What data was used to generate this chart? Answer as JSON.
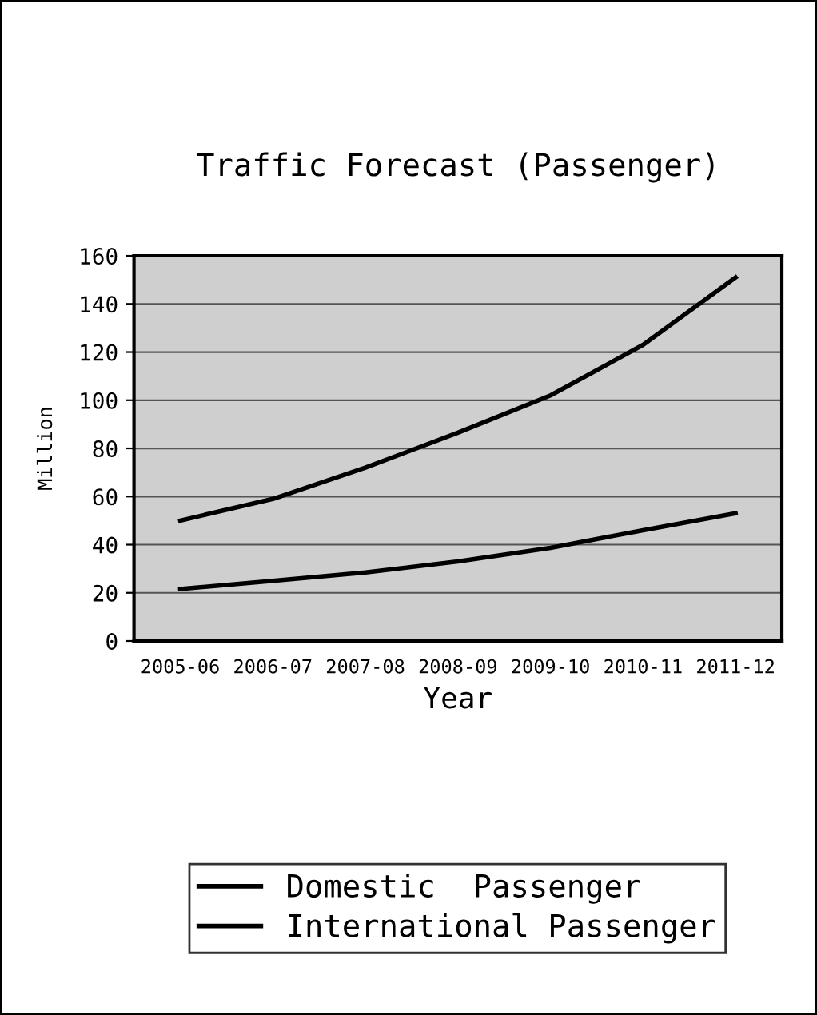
{
  "chart_data": {
    "type": "line",
    "title": "Traffic Forecast (Passenger)",
    "xlabel": "Year",
    "ylabel": "Million",
    "categories": [
      "2005-06",
      "2006-07",
      "2007-08",
      "2008-09",
      "2009-10",
      "2010-11",
      "2011-12"
    ],
    "series": [
      {
        "name": "Domestic  Passenger",
        "color": "#000000",
        "values": [
          50,
          59,
          72,
          86.5,
          102,
          123,
          151
        ]
      },
      {
        "name": "International Passenger",
        "color": "#000000",
        "values": [
          21.6,
          25,
          28.5,
          33,
          38.7,
          46,
          53
        ]
      }
    ],
    "ylim": [
      0,
      160
    ],
    "yticks": [
      0,
      20,
      40,
      60,
      80,
      100,
      120,
      140,
      160
    ],
    "grid": "y",
    "legend": "bottom",
    "marker": "none",
    "line_style": "solid"
  }
}
